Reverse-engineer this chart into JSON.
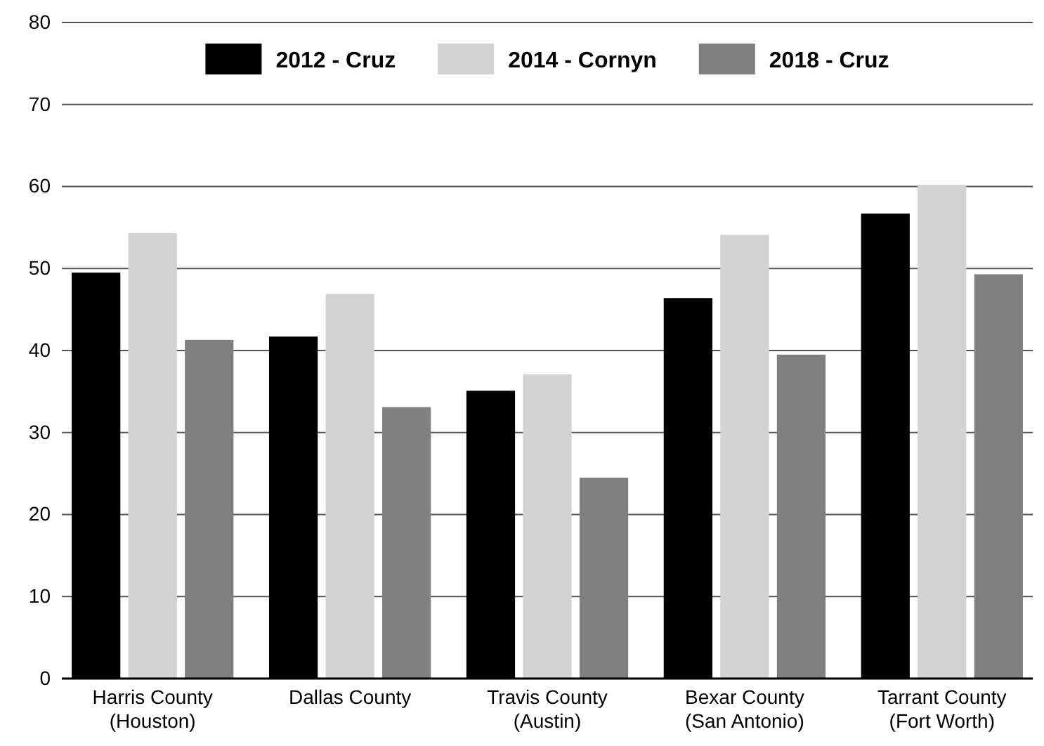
{
  "chart_data": {
    "type": "bar",
    "categories": [
      "Harris County\n(Houston)",
      "Dallas County",
      "Travis County\n(Austin)",
      "Bexar County\n(San Antonio)",
      "Tarrant County\n(Fort Worth)"
    ],
    "series": [
      {
        "name": "2012 - Cruz",
        "color": "#000000",
        "values": [
          49.5,
          41.7,
          35.1,
          46.4,
          56.7
        ]
      },
      {
        "name": "2014 - Cornyn",
        "color": "#d3d3d3",
        "values": [
          54.3,
          46.9,
          37.1,
          54.1,
          60.2
        ]
      },
      {
        "name": "2018 - Cruz",
        "color": "#808080",
        "values": [
          41.3,
          33.1,
          24.5,
          39.5,
          49.3
        ]
      }
    ],
    "ylim": [
      0,
      80
    ],
    "yticks": [
      0,
      10,
      20,
      30,
      40,
      50,
      60,
      70,
      80
    ],
    "grid": "y",
    "legend": "top"
  }
}
